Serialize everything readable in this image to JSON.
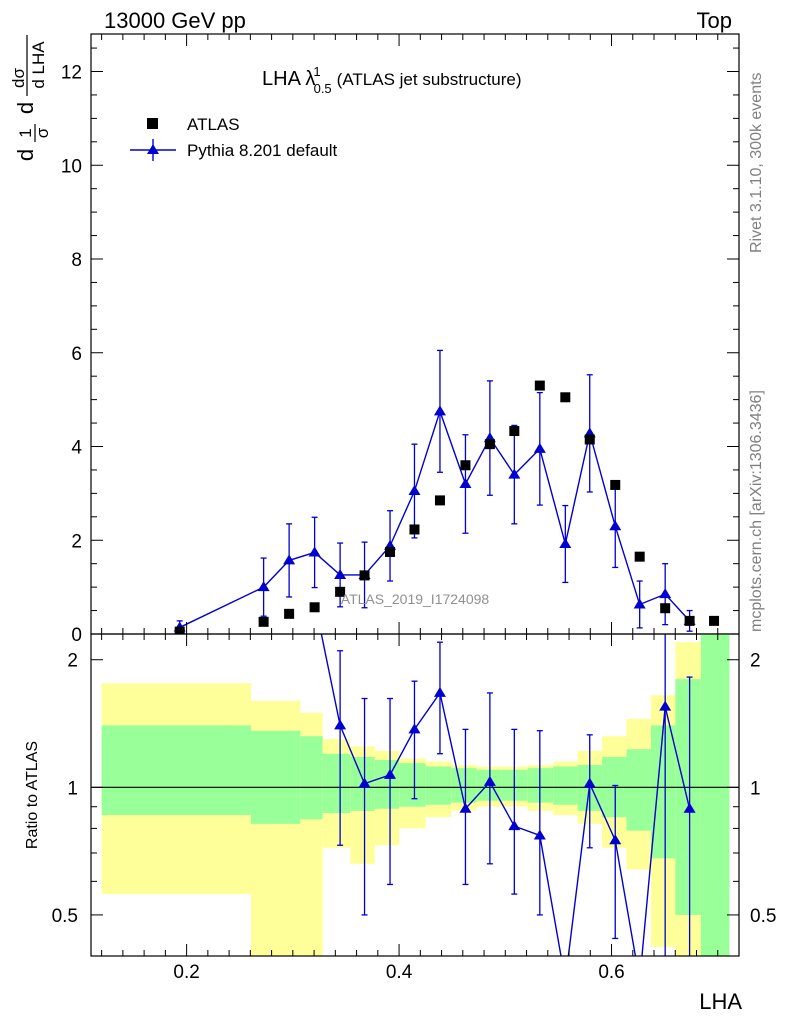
{
  "header": {
    "left": "13000 GeV pp",
    "right": "Top"
  },
  "side_labels": {
    "rivet": "Rivet 3.1.10,  300k events",
    "mcplots": "mcplots.cern.ch [arXiv:1306.3436]"
  },
  "chart_data": {
    "type": "scatter",
    "title_parts": {
      "base": "LHA λ",
      "sup": "1",
      "sub": "0.5",
      "suffix": "(ATLAS jet substructure)"
    },
    "watermark": "ATLAS_2019_I1724098",
    "xlabel": "LHA",
    "upper_ylabel": {
      "d1": "d",
      "one": "1",
      "sigma": "σ",
      "d2": "d",
      "dsigma": "dσ",
      "dlha": "d LHA"
    },
    "lower_ylabel": "Ratio to ATLAS",
    "xlim": [
      0.11,
      0.72
    ],
    "upper_ylim": [
      0,
      12.8
    ],
    "lower_ylim": [
      0.4,
      2.3
    ],
    "lower_log_scale": true,
    "x_ticks": [
      "0.2",
      "0.4",
      "0.6"
    ],
    "upper_y_ticks": [
      "0",
      "2",
      "4",
      "6",
      "8",
      "10",
      "12"
    ],
    "lower_y_ticks": [
      "0.5",
      "1",
      "2"
    ],
    "legend_placement": "top-left",
    "colors": {
      "data": "#000000",
      "mc": "#0000d0",
      "band_inner": "#99ff99",
      "band_outer": "#ffff99"
    },
    "data_series": {
      "name": "ATLAS",
      "x": [
        0.1935,
        0.2725,
        0.2965,
        0.3205,
        0.3445,
        0.3675,
        0.3915,
        0.4145,
        0.4385,
        0.4625,
        0.4855,
        0.5085,
        0.5325,
        0.5565,
        0.5795,
        0.6035,
        0.6265,
        0.6505,
        0.6735,
        0.6965
      ],
      "y": [
        0.05,
        0.26,
        0.43,
        0.57,
        0.9,
        1.25,
        1.75,
        2.23,
        2.85,
        3.6,
        4.05,
        4.33,
        5.3,
        5.05,
        4.15,
        3.18,
        1.65,
        0.55,
        0.28,
        0.28
      ]
    },
    "mc_series": {
      "name": "Pythia 8.201 default",
      "x": [
        0.1935,
        0.2725,
        0.2965,
        0.3205,
        0.3445,
        0.3675,
        0.3915,
        0.4145,
        0.4385,
        0.4625,
        0.4855,
        0.5085,
        0.5325,
        0.5565,
        0.5795,
        0.6035,
        0.6265,
        0.6505,
        0.6735
      ],
      "y": [
        0.14,
        1.0,
        1.57,
        1.74,
        1.26,
        1.26,
        1.88,
        3.05,
        4.75,
        3.2,
        4.18,
        3.4,
        3.95,
        1.92,
        4.28,
        2.3,
        0.63,
        0.85,
        0.28
      ],
      "yerr_up": [
        0.14,
        0.62,
        0.78,
        0.75,
        0.68,
        0.7,
        0.75,
        1.0,
        1.3,
        1.05,
        1.22,
        1.05,
        1.2,
        0.82,
        1.25,
        0.88,
        0.5,
        0.65,
        0.22
      ],
      "yerr_down": [
        0.12,
        0.62,
        0.78,
        0.75,
        0.68,
        0.7,
        0.75,
        1.0,
        1.3,
        1.05,
        1.22,
        1.05,
        1.2,
        0.82,
        1.25,
        0.88,
        0.5,
        0.65,
        0.22
      ]
    },
    "ratio_series": {
      "x": [
        0.3445,
        0.3675,
        0.3915,
        0.4145,
        0.4385,
        0.4625,
        0.4855,
        0.5085,
        0.5325,
        0.5565,
        0.5795,
        0.6035,
        0.6265,
        0.6505,
        0.6735
      ],
      "y": [
        1.4,
        1.02,
        1.07,
        1.37,
        1.67,
        0.89,
        1.03,
        0.81,
        0.77,
        0.35,
        1.02,
        0.75,
        0.35,
        1.55,
        0.89
      ],
      "y_up": [
        2.1,
        1.62,
        1.62,
        1.78,
        2.2,
        1.37,
        1.67,
        1.37,
        1.36,
        0.35,
        1.33,
        1.01,
        0.35,
        2.5,
        1.82
      ],
      "y_down": [
        0.73,
        0.5,
        0.59,
        0.94,
        1.2,
        0.59,
        0.66,
        0.56,
        0.5,
        0.35,
        0.72,
        0.44,
        0.35,
        0.35,
        0.35
      ]
    },
    "ratio_leadin": {
      "x": [
        0.3225,
        0.3445
      ],
      "y": [
        2.6,
        1.4
      ]
    },
    "bands": {
      "edges": [
        0.12,
        0.2606,
        0.3071,
        0.3281,
        0.3541,
        0.3771,
        0.4001,
        0.4251,
        0.4491,
        0.4731,
        0.4961,
        0.5211,
        0.5451,
        0.5681,
        0.5911,
        0.6141,
        0.6371,
        0.6601,
        0.6841,
        0.711
      ],
      "inner_up": [
        1.4,
        1.36,
        1.32,
        1.2,
        1.18,
        1.16,
        1.14,
        1.12,
        1.11,
        1.1,
        1.1,
        1.11,
        1.12,
        1.13,
        1.18,
        1.23,
        1.4,
        1.8,
        2.6
      ],
      "inner_down": [
        0.86,
        0.82,
        0.84,
        0.87,
        0.88,
        0.89,
        0.9,
        0.91,
        0.92,
        0.93,
        0.93,
        0.92,
        0.91,
        0.88,
        0.85,
        0.79,
        0.68,
        0.5,
        0.3
      ],
      "outer_up": [
        1.76,
        1.6,
        1.5,
        1.3,
        1.25,
        1.22,
        1.17,
        1.15,
        1.13,
        1.12,
        1.12,
        1.13,
        1.15,
        1.22,
        1.32,
        1.45,
        1.65,
        2.2,
        3.0
      ],
      "outer_down": [
        0.56,
        0.39,
        0.36,
        0.72,
        0.66,
        0.73,
        0.8,
        0.85,
        0.88,
        0.9,
        0.9,
        0.88,
        0.86,
        0.82,
        0.72,
        0.64,
        0.42,
        0.25,
        0.25
      ]
    }
  }
}
